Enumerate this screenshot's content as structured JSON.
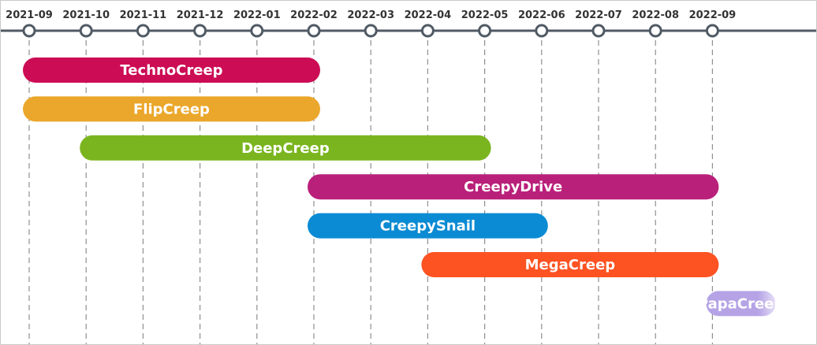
{
  "chart_data": {
    "type": "gantt",
    "title": "",
    "xlabel": "",
    "ylabel": "",
    "axis_position": "top",
    "grid": true,
    "ticks": [
      "2021-09",
      "2021-10",
      "2021-11",
      "2021-12",
      "2022-01",
      "2022-02",
      "2022-03",
      "2022-04",
      "2022-05",
      "2022-06",
      "2022-07",
      "2022-08",
      "2022-09"
    ],
    "colors": {
      "axis": "#505a64",
      "grid": "#8f8f8f",
      "tick_text": "#333333"
    },
    "tasks": [
      {
        "name": "TechnoCreep",
        "start": "2021-09",
        "end": "2022-02",
        "color": "#cc0c55"
      },
      {
        "name": "FlipCreep",
        "start": "2021-09",
        "end": "2022-02",
        "color": "#eba72b"
      },
      {
        "name": "DeepCreep",
        "start": "2021-10",
        "end": "2022-05",
        "color": "#7ab51f"
      },
      {
        "name": "CreepyDrive",
        "start": "2022-02",
        "end": "2022-09",
        "color": "#b9207a"
      },
      {
        "name": "CreepySnail",
        "start": "2022-02",
        "end": "2022-06",
        "color": "#0a8bd3"
      },
      {
        "name": "MegaCreep",
        "start": "2022-04",
        "end": "2022-09",
        "color": "#fd5222"
      },
      {
        "name": "PapaCreep",
        "start": "2022-09",
        "end": "2022-10",
        "color": "#b5a3e6",
        "fade_right": true
      }
    ]
  }
}
